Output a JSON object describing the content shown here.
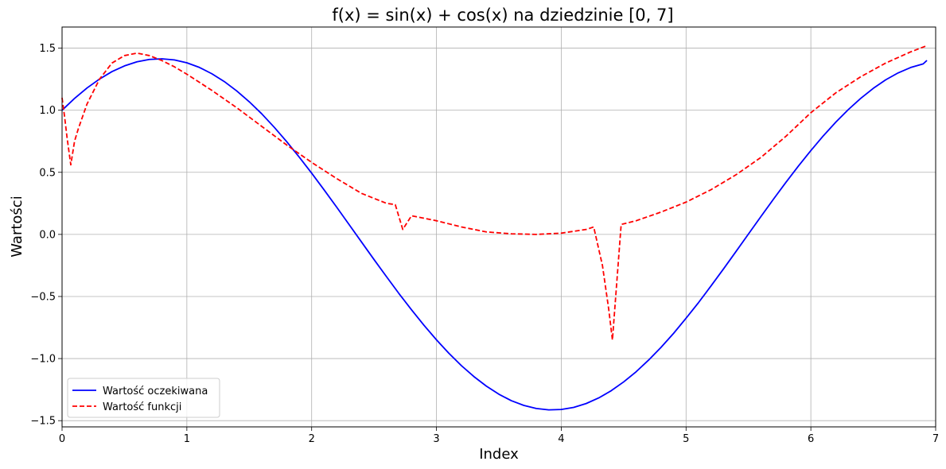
{
  "chart_data": {
    "type": "line",
    "title": "f(x) = sin(x) + cos(x) na dziedzinie [0, 7]",
    "xlabel": "Index",
    "ylabel": "Wartości",
    "xlim": [
      0,
      7
    ],
    "ylim": [
      -1.55,
      1.67
    ],
    "xticks": [
      0,
      1,
      2,
      3,
      4,
      5,
      6,
      7
    ],
    "xtick_labels": [
      "0",
      "1",
      "2",
      "3",
      "4",
      "5",
      "6",
      "7"
    ],
    "yticks": [
      -1.5,
      -1.0,
      -0.5,
      0.0,
      0.5,
      1.0,
      1.5
    ],
    "ytick_labels": [
      "−1.5",
      "−1.0",
      "−0.5",
      "0.0",
      "0.5",
      "1.0",
      "1.5"
    ],
    "grid": true,
    "legend_position": "lower-left",
    "series": [
      {
        "name": "Wartość oczekiwana",
        "color": "#0000ff",
        "style": "solid",
        "x": [
          0,
          0.1,
          0.2,
          0.3,
          0.4,
          0.5,
          0.6,
          0.7,
          0.8,
          0.9,
          1.0,
          1.1,
          1.2,
          1.3,
          1.4,
          1.5,
          1.6,
          1.7,
          1.8,
          1.9,
          2.0,
          2.1,
          2.2,
          2.3,
          2.4,
          2.5,
          2.6,
          2.7,
          2.8,
          2.9,
          3.0,
          3.1,
          3.2,
          3.3,
          3.4,
          3.5,
          3.6,
          3.7,
          3.8,
          3.9,
          4.0,
          4.1,
          4.2,
          4.3,
          4.4,
          4.5,
          4.6,
          4.7,
          4.8,
          4.9,
          5.0,
          5.1,
          5.2,
          5.3,
          5.4,
          5.5,
          5.6,
          5.7,
          5.8,
          5.9,
          6.0,
          6.1,
          6.2,
          6.3,
          6.4,
          6.5,
          6.6,
          6.7,
          6.8,
          6.9,
          6.93
        ],
        "y": [
          1.0,
          1.095,
          1.179,
          1.251,
          1.311,
          1.357,
          1.39,
          1.409,
          1.414,
          1.405,
          1.382,
          1.345,
          1.294,
          1.231,
          1.155,
          1.068,
          0.971,
          0.863,
          0.747,
          0.623,
          0.493,
          0.358,
          0.22,
          0.079,
          -0.062,
          -0.203,
          -0.341,
          -0.477,
          -0.607,
          -0.732,
          -0.849,
          -0.958,
          -1.057,
          -1.145,
          -1.222,
          -1.287,
          -1.339,
          -1.377,
          -1.402,
          -1.413,
          -1.41,
          -1.393,
          -1.362,
          -1.317,
          -1.259,
          -1.188,
          -1.106,
          -1.012,
          -0.909,
          -0.797,
          -0.675,
          -0.549,
          -0.415,
          -0.278,
          -0.138,
          0.003,
          0.144,
          0.283,
          0.419,
          0.55,
          0.675,
          0.794,
          0.904,
          1.005,
          1.096,
          1.176,
          1.245,
          1.301,
          1.344,
          1.373,
          1.401
        ]
      },
      {
        "name": "Wartość funkcji",
        "color": "#ff0000",
        "style": "dashed",
        "x": [
          0,
          0.02,
          0.04,
          0.07,
          0.1,
          0.13,
          0.2,
          0.3,
          0.4,
          0.5,
          0.6,
          0.7,
          0.8,
          0.9,
          1.0,
          1.2,
          1.4,
          1.6,
          1.8,
          2.0,
          2.2,
          2.4,
          2.6,
          2.67,
          2.73,
          2.8,
          3.0,
          3.2,
          3.4,
          3.6,
          3.8,
          4.0,
          4.2,
          4.26,
          4.33,
          4.38,
          4.41,
          4.48,
          4.6,
          4.8,
          5.0,
          5.2,
          5.4,
          5.6,
          5.8,
          6.0,
          6.2,
          6.4,
          6.6,
          6.8,
          6.93
        ],
        "y": [
          1.1,
          0.95,
          0.78,
          0.56,
          0.75,
          0.85,
          1.05,
          1.25,
          1.38,
          1.44,
          1.46,
          1.44,
          1.4,
          1.35,
          1.29,
          1.16,
          1.02,
          0.87,
          0.72,
          0.58,
          0.45,
          0.33,
          0.25,
          0.24,
          0.04,
          0.15,
          0.11,
          0.06,
          0.02,
          0.005,
          0.0,
          0.01,
          0.04,
          0.06,
          -0.25,
          -0.6,
          -0.85,
          0.08,
          0.11,
          0.18,
          0.26,
          0.36,
          0.48,
          0.62,
          0.79,
          0.98,
          1.14,
          1.27,
          1.38,
          1.47,
          1.52
        ]
      }
    ]
  }
}
